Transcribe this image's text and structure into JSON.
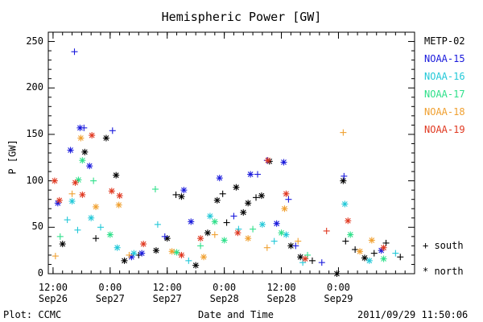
{
  "title": "Hemispheric Power [GW]",
  "ylabel": "P [GW]",
  "xlabel": "Date and Time",
  "footer": {
    "left": "Plot: CCMC",
    "right": "2011/09/29 11:50:06"
  },
  "marker_key": {
    "south": "+ south",
    "north": "* north"
  },
  "colors": {
    "METP-02": "#000000",
    "NOAA-15": "#1a1adc",
    "NOAA-16": "#22c8d8",
    "NOAA-17": "#2ee08a",
    "NOAA-18": "#f0a030",
    "NOAA-19": "#e03820"
  },
  "chart_data": {
    "type": "scatter",
    "title": "Hemispheric Power [GW]",
    "xlabel": "Date and Time",
    "ylabel": "P [GW]",
    "xlim": [
      "2011-09-26 11:00",
      "2011-09-29 16:00"
    ],
    "ylim": [
      0,
      260
    ],
    "yticks": [
      0,
      50,
      100,
      150,
      200,
      250
    ],
    "xticks": [
      {
        "time": "2011-09-26 12:00",
        "label1": "12:00",
        "label2": "Sep26"
      },
      {
        "time": "2011-09-27 00:00",
        "label1": "0:00",
        "label2": "Sep27"
      },
      {
        "time": "2011-09-27 12:00",
        "label1": "12:00",
        "label2": "Sep27"
      },
      {
        "time": "2011-09-28 00:00",
        "label1": "0:00",
        "label2": "Sep28"
      },
      {
        "time": "2011-09-28 12:00",
        "label1": "12:00",
        "label2": "Sep28"
      },
      {
        "time": "2011-09-29 00:00",
        "label1": "0:00",
        "label2": "Sep29"
      }
    ],
    "legend_position": "right",
    "markers": {
      "south": "+",
      "north": "*"
    },
    "series": [
      {
        "name": "METP-02",
        "color": "#000000",
        "points": [
          [
            "2011-09-26 18:40",
            131,
            "north"
          ],
          [
            "2011-09-26 23:10",
            146,
            "north"
          ],
          [
            "2011-09-27 01:15",
            106,
            "north"
          ],
          [
            "2011-09-27 13:50",
            85,
            "south"
          ],
          [
            "2011-09-27 15:00",
            83,
            "north"
          ],
          [
            "2011-09-27 22:30",
            79,
            "north"
          ],
          [
            "2011-09-27 23:40",
            86,
            "south"
          ],
          [
            "2011-09-28 02:30",
            93,
            "north"
          ],
          [
            "2011-09-28 05:00",
            76,
            "north"
          ],
          [
            "2011-09-28 06:40",
            82,
            "south"
          ],
          [
            "2011-09-28 09:30",
            121,
            "north"
          ],
          [
            "2011-09-28 23:40",
            0,
            "north"
          ],
          [
            "2011-09-29 01:30",
            35,
            "south"
          ],
          [
            "2011-09-29 03:30",
            26,
            "south"
          ],
          [
            "2011-09-29 10:00",
            33,
            "south"
          ],
          [
            "2011-09-29 13:00",
            18,
            "south"
          ],
          [
            "2011-09-26 14:00",
            32,
            "north"
          ],
          [
            "2011-09-27 06:00",
            20,
            "south"
          ],
          [
            "2011-09-27 09:40",
            25,
            "north"
          ],
          [
            "2011-09-27 18:00",
            9,
            "north"
          ],
          [
            "2011-09-28 00:30",
            55,
            "south"
          ],
          [
            "2011-09-28 14:00",
            30,
            "north"
          ],
          [
            "2011-09-28 18:30",
            14,
            "south"
          ],
          [
            "2011-09-29 05:30",
            17,
            "north"
          ],
          [
            "2011-09-29 07:30",
            22,
            "south"
          ],
          [
            "2011-09-27 20:30",
            44,
            "north"
          ],
          [
            "2011-09-28 04:00",
            66,
            "north"
          ],
          [
            "2011-09-28 07:50",
            84,
            "north"
          ],
          [
            "2011-09-27 12:00",
            38,
            "north"
          ],
          [
            "2011-09-26 21:00",
            38,
            "south"
          ],
          [
            "2011-09-29 01:00",
            100,
            "north"
          ],
          [
            "2011-09-27 03:00",
            14,
            "north"
          ],
          [
            "2011-09-28 16:00",
            18,
            "north"
          ]
        ]
      },
      {
        "name": "NOAA-15",
        "color": "#1a1adc",
        "points": [
          [
            "2011-09-26 16:30",
            239,
            "south"
          ],
          [
            "2011-09-26 15:40",
            133,
            "north"
          ],
          [
            "2011-09-26 17:40",
            157,
            "north"
          ],
          [
            "2011-09-26 18:30",
            157,
            "south"
          ],
          [
            "2011-09-26 19:40",
            116,
            "north"
          ],
          [
            "2011-09-27 00:30",
            154,
            "south"
          ],
          [
            "2011-09-27 15:30",
            90,
            "north"
          ],
          [
            "2011-09-27 23:00",
            103,
            "north"
          ],
          [
            "2011-09-28 05:30",
            107,
            "north"
          ],
          [
            "2011-09-28 07:00",
            107,
            "south"
          ],
          [
            "2011-09-28 09:00",
            122,
            "south"
          ],
          [
            "2011-09-28 12:30",
            120,
            "north"
          ],
          [
            "2011-09-28 13:30",
            80,
            "south"
          ],
          [
            "2011-09-29 01:10",
            105,
            "south"
          ],
          [
            "2011-09-26 13:00",
            76,
            "north"
          ],
          [
            "2011-09-27 17:00",
            56,
            "north"
          ],
          [
            "2011-09-28 11:00",
            54,
            "north"
          ],
          [
            "2011-09-28 15:00",
            30,
            "south"
          ],
          [
            "2011-09-27 11:30",
            40,
            "south"
          ],
          [
            "2011-09-28 02:00",
            62,
            "south"
          ],
          [
            "2011-09-29 09:00",
            25,
            "north"
          ],
          [
            "2011-09-27 04:30",
            18,
            "north"
          ],
          [
            "2011-09-28 20:30",
            12,
            "south"
          ],
          [
            "2011-09-27 06:40",
            22,
            "north"
          ]
        ]
      },
      {
        "name": "NOAA-16",
        "color": "#22c8d8",
        "points": [
          [
            "2011-09-26 15:00",
            58,
            "south"
          ],
          [
            "2011-09-26 16:00",
            78,
            "north"
          ],
          [
            "2011-09-26 17:10",
            47,
            "south"
          ],
          [
            "2011-09-26 20:00",
            60,
            "north"
          ],
          [
            "2011-09-26 22:00",
            50,
            "south"
          ],
          [
            "2011-09-27 10:00",
            53,
            "south"
          ],
          [
            "2011-09-27 21:00",
            62,
            "north"
          ],
          [
            "2011-09-28 03:00",
            48,
            "south"
          ],
          [
            "2011-09-28 08:00",
            53,
            "north"
          ],
          [
            "2011-09-28 13:00",
            42,
            "north"
          ],
          [
            "2011-09-29 01:20",
            75,
            "north"
          ],
          [
            "2011-09-27 01:30",
            28,
            "north"
          ],
          [
            "2011-09-27 16:30",
            14,
            "south"
          ],
          [
            "2011-09-28 16:30",
            12,
            "south"
          ],
          [
            "2011-09-29 06:30",
            14,
            "north"
          ],
          [
            "2011-09-28 10:30",
            35,
            "south"
          ],
          [
            "2011-09-27 05:00",
            22,
            "north"
          ],
          [
            "2011-09-29 12:00",
            22,
            "south"
          ]
        ]
      },
      {
        "name": "NOAA-17",
        "color": "#2ee08a",
        "points": [
          [
            "2011-09-26 17:20",
            101,
            "north"
          ],
          [
            "2011-09-26 18:10",
            122,
            "north"
          ],
          [
            "2011-09-26 20:30",
            100,
            "south"
          ],
          [
            "2011-09-27 09:30",
            91,
            "south"
          ],
          [
            "2011-09-26 13:30",
            40,
            "south"
          ],
          [
            "2011-09-27 00:00",
            42,
            "north"
          ],
          [
            "2011-09-27 22:00",
            56,
            "north"
          ],
          [
            "2011-09-28 06:00",
            48,
            "south"
          ],
          [
            "2011-09-28 12:00",
            44,
            "north"
          ],
          [
            "2011-09-29 02:30",
            42,
            "north"
          ],
          [
            "2011-09-27 14:00",
            23,
            "north"
          ],
          [
            "2011-09-28 17:30",
            20,
            "south"
          ],
          [
            "2011-09-29 09:30",
            16,
            "north"
          ],
          [
            "2011-09-27 19:00",
            30,
            "south"
          ],
          [
            "2011-09-28 00:00",
            36,
            "north"
          ]
        ]
      },
      {
        "name": "NOAA-18",
        "color": "#f0a030",
        "points": [
          [
            "2011-09-26 17:50",
            146,
            "north"
          ],
          [
            "2011-09-26 16:00",
            86,
            "south"
          ],
          [
            "2011-09-26 21:00",
            72,
            "north"
          ],
          [
            "2011-09-27 01:50",
            74,
            "north"
          ],
          [
            "2011-09-28 12:40",
            70,
            "north"
          ],
          [
            "2011-09-29 01:00",
            152,
            "south"
          ],
          [
            "2011-09-27 22:00",
            42,
            "south"
          ],
          [
            "2011-09-28 05:00",
            38,
            "north"
          ],
          [
            "2011-09-26 12:30",
            19,
            "south"
          ],
          [
            "2011-09-27 04:00",
            20,
            "south"
          ],
          [
            "2011-09-27 13:00",
            24,
            "north"
          ],
          [
            "2011-09-28 15:30",
            35,
            "south"
          ],
          [
            "2011-09-29 04:30",
            24,
            "north"
          ],
          [
            "2011-09-28 09:00",
            28,
            "south"
          ],
          [
            "2011-09-27 19:40",
            18,
            "north"
          ],
          [
            "2011-09-29 07:00",
            36,
            "north"
          ]
        ]
      },
      {
        "name": "NOAA-19",
        "color": "#e03820",
        "points": [
          [
            "2011-09-26 12:20",
            100,
            "north"
          ],
          [
            "2011-09-26 13:20",
            79,
            "north"
          ],
          [
            "2011-09-26 16:40",
            98,
            "north"
          ],
          [
            "2011-09-26 18:10",
            85,
            "north"
          ],
          [
            "2011-09-26 20:10",
            149,
            "north"
          ],
          [
            "2011-09-27 00:20",
            89,
            "north"
          ],
          [
            "2011-09-27 02:00",
            84,
            "north"
          ],
          [
            "2011-09-28 09:10",
            122,
            "north"
          ],
          [
            "2011-09-28 13:00",
            86,
            "north"
          ],
          [
            "2011-09-29 02:00",
            57,
            "north"
          ],
          [
            "2011-09-27 19:00",
            38,
            "north"
          ],
          [
            "2011-09-28 02:50",
            44,
            "north"
          ],
          [
            "2011-09-28 21:30",
            46,
            "south"
          ],
          [
            "2011-09-27 07:00",
            32,
            "north"
          ],
          [
            "2011-09-28 17:00",
            16,
            "north"
          ],
          [
            "2011-09-29 09:30",
            28,
            "north"
          ],
          [
            "2011-09-27 15:00",
            20,
            "north"
          ]
        ]
      }
    ]
  }
}
